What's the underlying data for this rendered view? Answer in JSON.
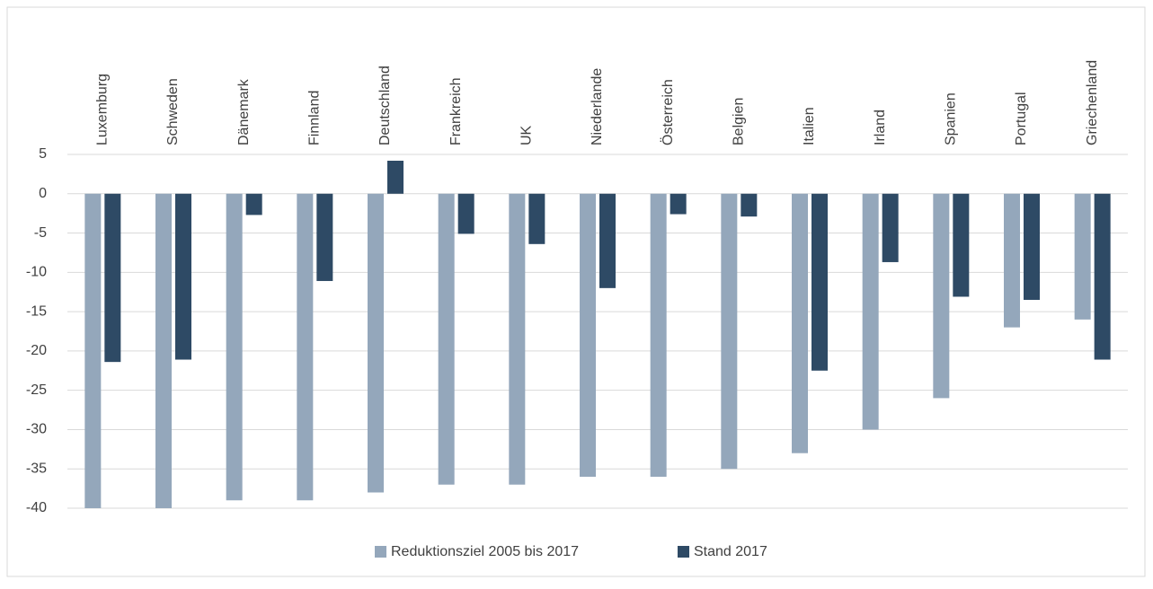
{
  "chart_data": {
    "type": "bar",
    "categories": [
      "Luxemburg",
      "Schweden",
      "Dänemark",
      "Finnland",
      "Deutschland",
      "Frankreich",
      "UK",
      "Niederlande",
      "Österreich",
      "Belgien",
      "Italien",
      "Irland",
      "Spanien",
      "Portugal",
      "Griechenland"
    ],
    "series": [
      {
        "name": "Reduktionsziel 2005 bis 2017",
        "color": "#94a7bb",
        "values": [
          -40,
          -40,
          -39,
          -39,
          -38,
          -37,
          -37,
          -36,
          -36,
          -35,
          -33,
          -30,
          -26,
          -17,
          -16
        ]
      },
      {
        "name": "Stand 2017",
        "color": "#2e4a65",
        "values": [
          -21.4,
          -21.1,
          -2.7,
          -11.1,
          4.2,
          -5.1,
          -6.4,
          -12,
          -2.6,
          -2.9,
          -22.5,
          -8.7,
          -13.1,
          -13.5,
          -21.1
        ]
      }
    ],
    "ylim": [
      -40,
      5
    ],
    "yticks": [
      5,
      0,
      -5,
      -10,
      -15,
      -20,
      -25,
      -30,
      -35,
      -40
    ],
    "grid": true,
    "legend": "bottom"
  }
}
